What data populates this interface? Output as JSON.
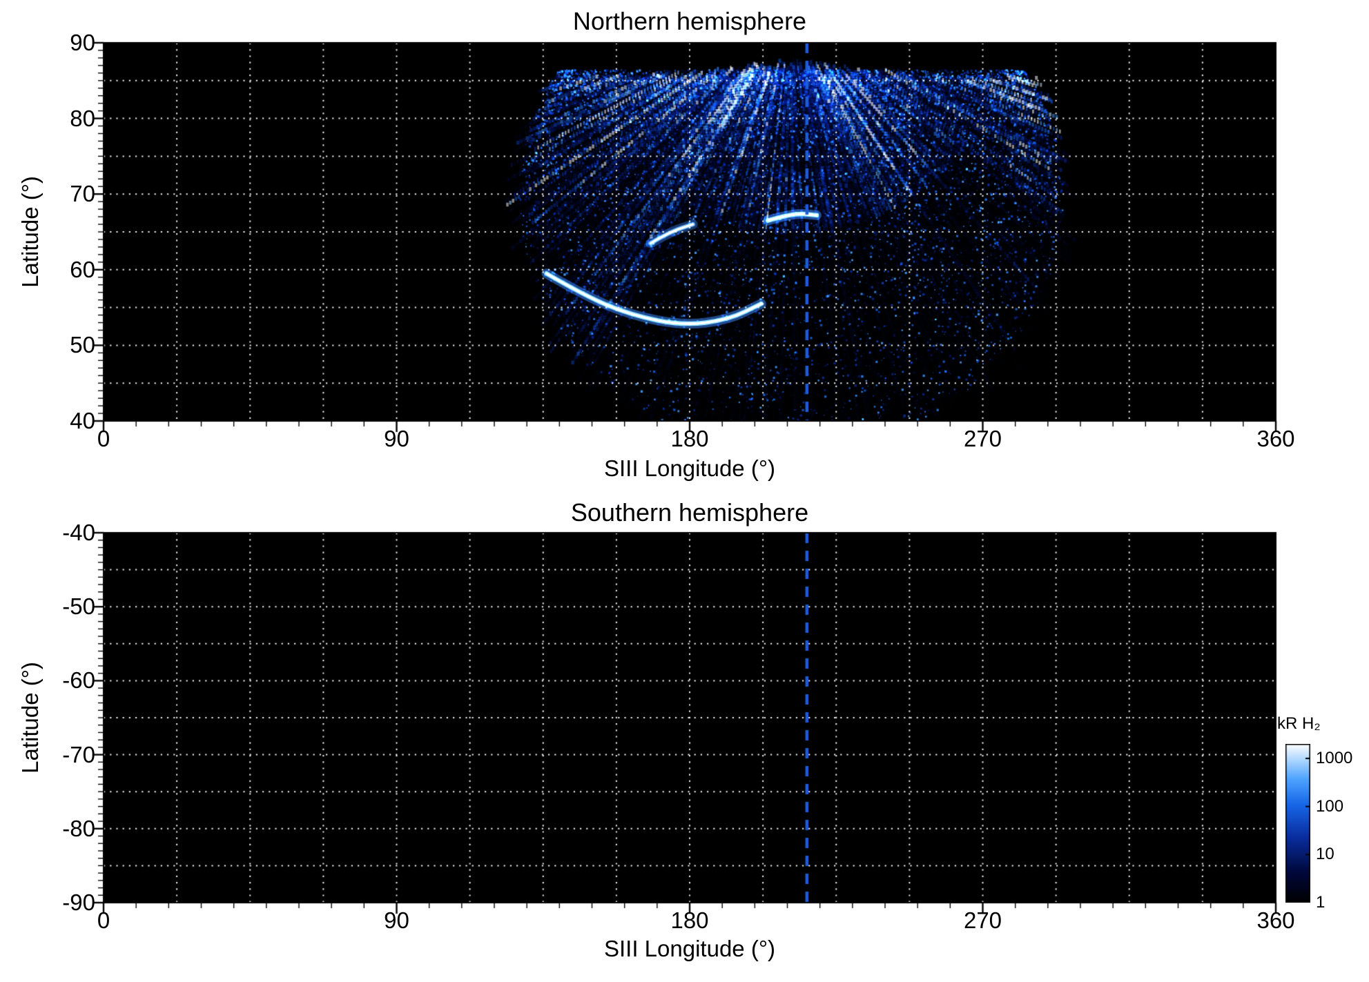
{
  "panels": {
    "north": {
      "title": "Northern hemisphere",
      "xlabel": "SIII Longitude (°)",
      "ylabel": "Latitude (°)",
      "xticks": [
        "0",
        "90",
        "180",
        "270",
        "360"
      ],
      "yticks": [
        "90",
        "80",
        "70",
        "60",
        "50",
        "40"
      ]
    },
    "south": {
      "title": "Southern hemisphere",
      "xlabel": "SIII Longitude (°)",
      "ylabel": "Latitude (°)",
      "xticks": [
        "0",
        "90",
        "180",
        "270",
        "360"
      ],
      "yticks": [
        "-40",
        "-50",
        "-60",
        "-70",
        "-80",
        "-90"
      ]
    }
  },
  "colorbar": {
    "label": "kR H₂",
    "tick_labels": [
      "1000",
      "100",
      "10",
      "1"
    ],
    "tick_values": [
      1000,
      100,
      10,
      1
    ],
    "scale": "log",
    "min": 1,
    "max": 2000,
    "gradient_stops": [
      [
        0,
        "#000000"
      ],
      [
        0.2,
        "#00093f"
      ],
      [
        0.42,
        "#0a2fa2"
      ],
      [
        0.62,
        "#1767e8"
      ],
      [
        0.78,
        "#4fa4ff"
      ],
      [
        0.9,
        "#aed7ff"
      ],
      [
        1,
        "#ffffff"
      ]
    ]
  },
  "chart_data": [
    {
      "type": "heatmap",
      "title": "Northern hemisphere",
      "xlabel": "SIII Longitude (°)",
      "ylabel": "Latitude (°)",
      "xlim": [
        0,
        360
      ],
      "ylim": [
        40,
        90
      ],
      "xtick_values": [
        0,
        90,
        180,
        270,
        360
      ],
      "ytick_values": [
        90,
        80,
        70,
        60,
        50,
        40
      ],
      "xtick_minor_step": 10,
      "ytick_minor_step": 1,
      "grid": {
        "style": "dotted-white",
        "x_spacing_deg": 22.5,
        "y_spacing_deg": 5
      },
      "background_value_kR": 0,
      "marker_line": {
        "type": "vertical-dashed",
        "longitude_deg": 216,
        "color": "#1d5cd8"
      },
      "aurora_swath": {
        "description": "Fan-shaped UV auroral emission swath with radial striations converging toward the pole; speckled diffuse emission at lower latitudes",
        "fan_apex": {
          "longitude_deg": 211,
          "latitude_deg": 94
        },
        "longitude_extent_deg": [
          125,
          297
        ],
        "latitude_extent_deg": [
          40,
          87
        ],
        "striation_count": 240,
        "speckle_count": 11000,
        "features": [
          {
            "name": "main-oval-arc",
            "approx_intensity_kR": 900,
            "points_lon_lat": [
              [
                136,
                59.5
              ],
              [
                148,
                56.5
              ],
              [
                162,
                54
              ],
              [
                178,
                52.6
              ],
              [
                192,
                53.4
              ],
              [
                202,
                55.5
              ]
            ]
          },
          {
            "name": "bright-streak",
            "approx_intensity_kR": 1000,
            "points_lon_lat": [
              [
                204,
                66.5
              ],
              [
                212,
                67.5
              ],
              [
                219,
                67.2
              ]
            ]
          },
          {
            "name": "secondary-patch",
            "approx_intensity_kR": 500,
            "points_lon_lat": [
              [
                168,
                63.5
              ],
              [
                174,
                65
              ],
              [
                181,
                66
              ]
            ]
          },
          {
            "name": "diffuse-speckled-emission",
            "approx_intensity_kR": 20
          }
        ]
      }
    },
    {
      "type": "heatmap",
      "title": "Southern hemisphere",
      "xlabel": "SIII Longitude (°)",
      "ylabel": "Latitude (°)",
      "xlim": [
        0,
        360
      ],
      "ylim": [
        -90,
        -40
      ],
      "xtick_values": [
        0,
        90,
        180,
        270,
        360
      ],
      "ytick_values": [
        -40,
        -50,
        -60,
        -70,
        -80,
        -90
      ],
      "xtick_minor_step": 10,
      "ytick_minor_step": 1,
      "grid": {
        "style": "dotted-white",
        "x_spacing_deg": 22.5,
        "y_spacing_deg": 5
      },
      "background_value_kR": 0,
      "marker_line": {
        "type": "vertical-dashed",
        "longitude_deg": 216,
        "color": "#1d5cd8"
      },
      "data_note": "no emission observed (background only)"
    }
  ]
}
